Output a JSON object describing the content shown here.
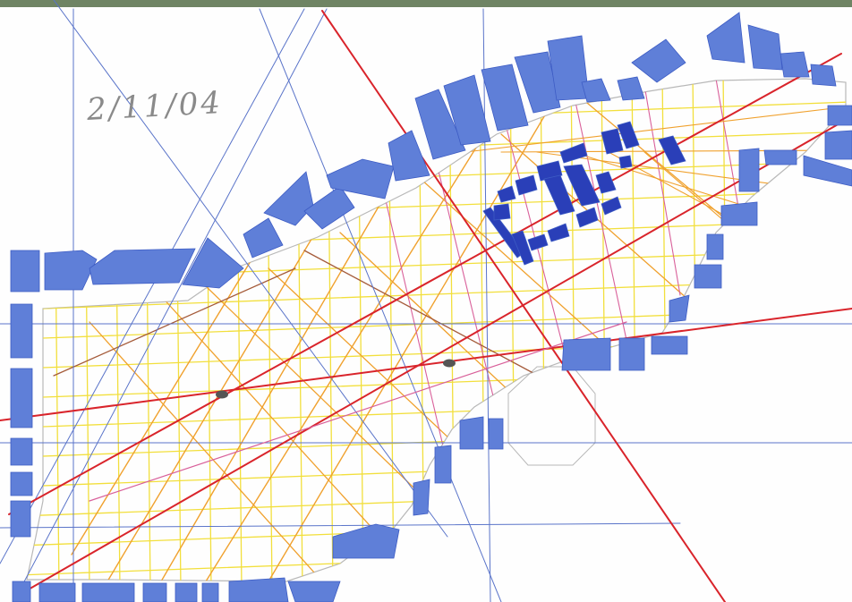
{
  "drawing": {
    "date_note": "2/11/04"
  },
  "colors": {
    "frame_band": "#6f8464",
    "building_fill": "#5f7fd8",
    "building_dark": "#2a3fb8",
    "building_stroke": "#3d5cc4",
    "site_outline": "#b8b8b8",
    "line_yellow": "#f2df3c",
    "line_orange": "#f0a12e",
    "line_red": "#d9242b",
    "line_pink": "#d9609a",
    "line_brown": "#a55b3a",
    "line_blue": "#5a74c9",
    "marker": "#555555"
  },
  "icons": [
    "hand-drawn-urban-site-plan"
  ]
}
